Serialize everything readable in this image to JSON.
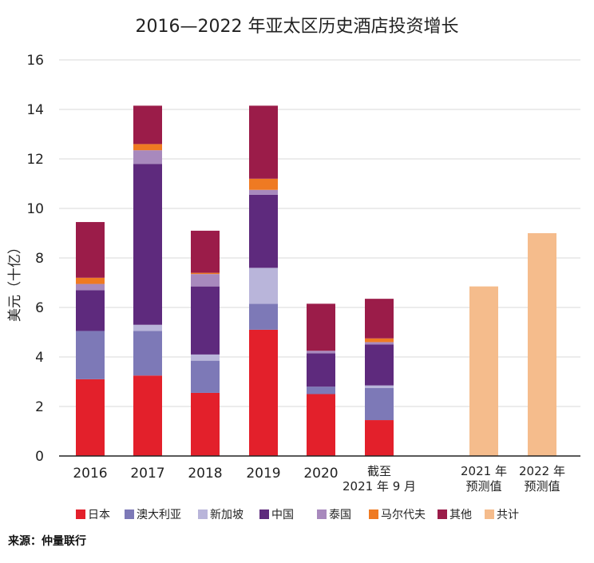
{
  "chart_data": {
    "type": "bar",
    "stacked": true,
    "title": "2016—2022 年亚太区历史酒店投资增长",
    "ylabel": "美元（十亿）",
    "xlabel": "",
    "ylim": [
      0,
      16
    ],
    "yticks": [
      0,
      2,
      4,
      6,
      8,
      10,
      12,
      14,
      16
    ],
    "grid": true,
    "legend_position": "bottom",
    "categories": [
      {
        "line1": "2016",
        "line2": ""
      },
      {
        "line1": "2017",
        "line2": ""
      },
      {
        "line1": "2018",
        "line2": ""
      },
      {
        "line1": "2019",
        "line2": ""
      },
      {
        "line1": "2020",
        "line2": ""
      },
      {
        "line1": "截至",
        "line2": "2021 年 9 月"
      },
      {
        "line1": "2021 年",
        "line2": "预测值"
      },
      {
        "line1": "2022 年",
        "line2": "预测值"
      }
    ],
    "series": [
      {
        "name": "日本",
        "color": "#e3202b",
        "values": [
          3.1,
          3.25,
          2.55,
          5.1,
          2.5,
          1.45,
          0,
          0
        ]
      },
      {
        "name": "澳大利亚",
        "color": "#7d79b7",
        "values": [
          1.95,
          1.8,
          1.3,
          1.05,
          0.3,
          1.3,
          0,
          0
        ]
      },
      {
        "name": "新加坡",
        "color": "#b9b5da",
        "values": [
          0,
          0.25,
          0.25,
          1.45,
          0,
          0.1,
          0,
          0
        ]
      },
      {
        "name": "中国",
        "color": "#5e2a7d",
        "values": [
          1.65,
          6.5,
          2.75,
          2.95,
          1.35,
          1.65,
          0,
          0
        ]
      },
      {
        "name": "泰国",
        "color": "#a889bd",
        "values": [
          0.25,
          0.55,
          0.5,
          0.2,
          0.1,
          0.1,
          0,
          0
        ]
      },
      {
        "name": "马尔代夫",
        "color": "#ef7a22",
        "values": [
          0.25,
          0.25,
          0.05,
          0.45,
          0,
          0.15,
          0,
          0
        ]
      },
      {
        "name": "其他",
        "color": "#9b1c49",
        "values": [
          2.25,
          1.55,
          1.7,
          2.95,
          1.9,
          1.6,
          0,
          0
        ]
      },
      {
        "name": "共计",
        "color": "#f5bc8c",
        "values": [
          0,
          0,
          0,
          0,
          0,
          0,
          6.85,
          9.0
        ]
      }
    ]
  },
  "source": "来源：仲量联行"
}
